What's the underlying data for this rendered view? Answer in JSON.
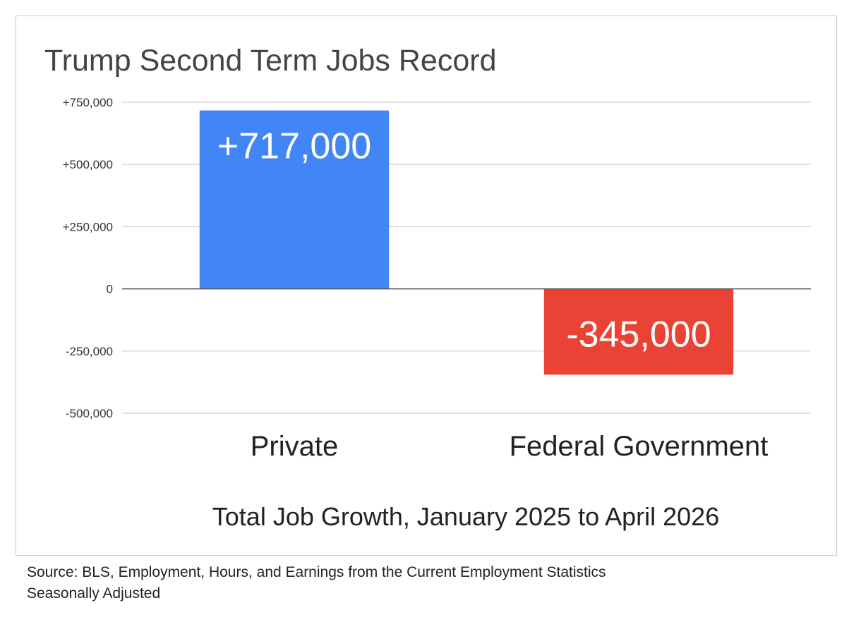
{
  "chart_data": {
    "type": "bar",
    "title": "Trump Second Term Jobs Record",
    "xlabel": "Total Job Growth, January 2025 to April 2026",
    "ylabel": "",
    "categories": [
      "Private",
      "Federal Government"
    ],
    "values": [
      717000,
      -345000
    ],
    "data_labels": [
      "+717,000",
      "-345,000"
    ],
    "colors": [
      "#4285f4",
      "#ea4335"
    ],
    "ylim": [
      -500000,
      750000
    ],
    "yticks": [
      750000,
      500000,
      250000,
      0,
      -250000,
      -500000
    ],
    "ytick_labels": [
      "+750,000",
      "+500,000",
      "+250,000",
      "0",
      "-250,000",
      "-500,000"
    ],
    "grid": true,
    "legend": "none"
  },
  "source": {
    "line1": "Source: BLS, Employment, Hours, and Earnings from the Current Employment Statistics",
    "line2": "Seasonally Adjusted"
  }
}
